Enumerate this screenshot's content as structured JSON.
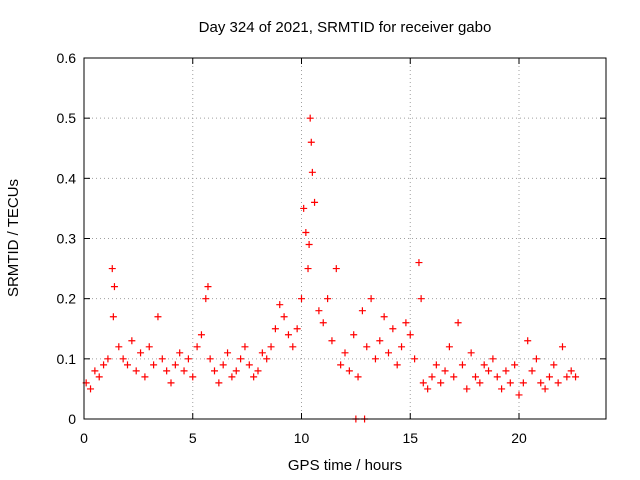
{
  "chart_data": {
    "type": "scatter",
    "title": "Day 324 of 2021, SRMTID for receiver gabo",
    "xlabel": "GPS time / hours",
    "ylabel": "SRMTID / TECUs",
    "xlim": [
      0,
      24
    ],
    "ylim": [
      0,
      0.6
    ],
    "xticks": [
      0,
      5,
      10,
      15,
      20
    ],
    "yticks": [
      0,
      0.1,
      0.2,
      0.3,
      0.4,
      0.5,
      0.6
    ],
    "grid": true,
    "marker": "+",
    "color": "#ff0000",
    "series": [
      {
        "name": "SRMTID",
        "x": [
          0.1,
          0.3,
          0.5,
          0.7,
          0.9,
          1.1,
          1.3,
          1.35,
          1.4,
          1.6,
          1.8,
          2.0,
          2.2,
          2.4,
          2.6,
          2.8,
          3.0,
          3.2,
          3.4,
          3.6,
          3.8,
          4.0,
          4.2,
          4.4,
          4.6,
          4.8,
          5.0,
          5.2,
          5.4,
          5.6,
          5.7,
          5.8,
          6.0,
          6.2,
          6.4,
          6.6,
          6.8,
          7.0,
          7.2,
          7.4,
          7.6,
          7.8,
          8.0,
          8.2,
          8.4,
          8.6,
          8.8,
          9.0,
          9.2,
          9.4,
          9.6,
          9.8,
          10.0,
          10.1,
          10.2,
          10.3,
          10.35,
          10.4,
          10.45,
          10.5,
          10.6,
          10.8,
          11.0,
          11.2,
          11.4,
          11.6,
          11.8,
          12.0,
          12.2,
          12.4,
          12.6,
          12.8,
          13.0,
          13.2,
          13.4,
          13.6,
          13.8,
          14.0,
          14.2,
          14.4,
          14.6,
          14.8,
          15.0,
          15.2,
          15.4,
          15.5,
          15.6,
          15.8,
          16.0,
          16.2,
          16.4,
          16.6,
          16.8,
          17.0,
          17.2,
          17.4,
          17.6,
          17.8,
          18.0,
          18.2,
          18.4,
          18.6,
          18.8,
          19.0,
          19.2,
          19.4,
          19.6,
          19.8,
          20.0,
          20.2,
          20.4,
          20.6,
          20.8,
          21.0,
          21.2,
          21.4,
          21.6,
          21.8,
          22.0,
          22.2,
          22.4,
          22.6,
          12.5,
          12.9
        ],
        "y": [
          0.06,
          0.05,
          0.08,
          0.07,
          0.09,
          0.1,
          0.25,
          0.17,
          0.22,
          0.12,
          0.1,
          0.09,
          0.13,
          0.08,
          0.11,
          0.07,
          0.12,
          0.09,
          0.17,
          0.1,
          0.08,
          0.06,
          0.09,
          0.11,
          0.08,
          0.1,
          0.07,
          0.12,
          0.14,
          0.2,
          0.22,
          0.1,
          0.08,
          0.06,
          0.09,
          0.11,
          0.07,
          0.08,
          0.1,
          0.12,
          0.09,
          0.07,
          0.08,
          0.11,
          0.1,
          0.12,
          0.15,
          0.19,
          0.17,
          0.14,
          0.12,
          0.15,
          0.2,
          0.35,
          0.31,
          0.25,
          0.29,
          0.5,
          0.46,
          0.41,
          0.36,
          0.18,
          0.16,
          0.2,
          0.13,
          0.25,
          0.09,
          0.11,
          0.08,
          0.14,
          0.07,
          0.18,
          0.12,
          0.2,
          0.1,
          0.13,
          0.17,
          0.11,
          0.15,
          0.09,
          0.12,
          0.16,
          0.14,
          0.1,
          0.26,
          0.2,
          0.06,
          0.05,
          0.07,
          0.09,
          0.06,
          0.08,
          0.12,
          0.07,
          0.16,
          0.09,
          0.05,
          0.11,
          0.07,
          0.06,
          0.09,
          0.08,
          0.1,
          0.07,
          0.05,
          0.08,
          0.06,
          0.09,
          0.04,
          0.06,
          0.13,
          0.08,
          0.1,
          0.06,
          0.05,
          0.07,
          0.09,
          0.06,
          0.12,
          0.07,
          0.08,
          0.07,
          0.0,
          0.0
        ]
      }
    ]
  }
}
